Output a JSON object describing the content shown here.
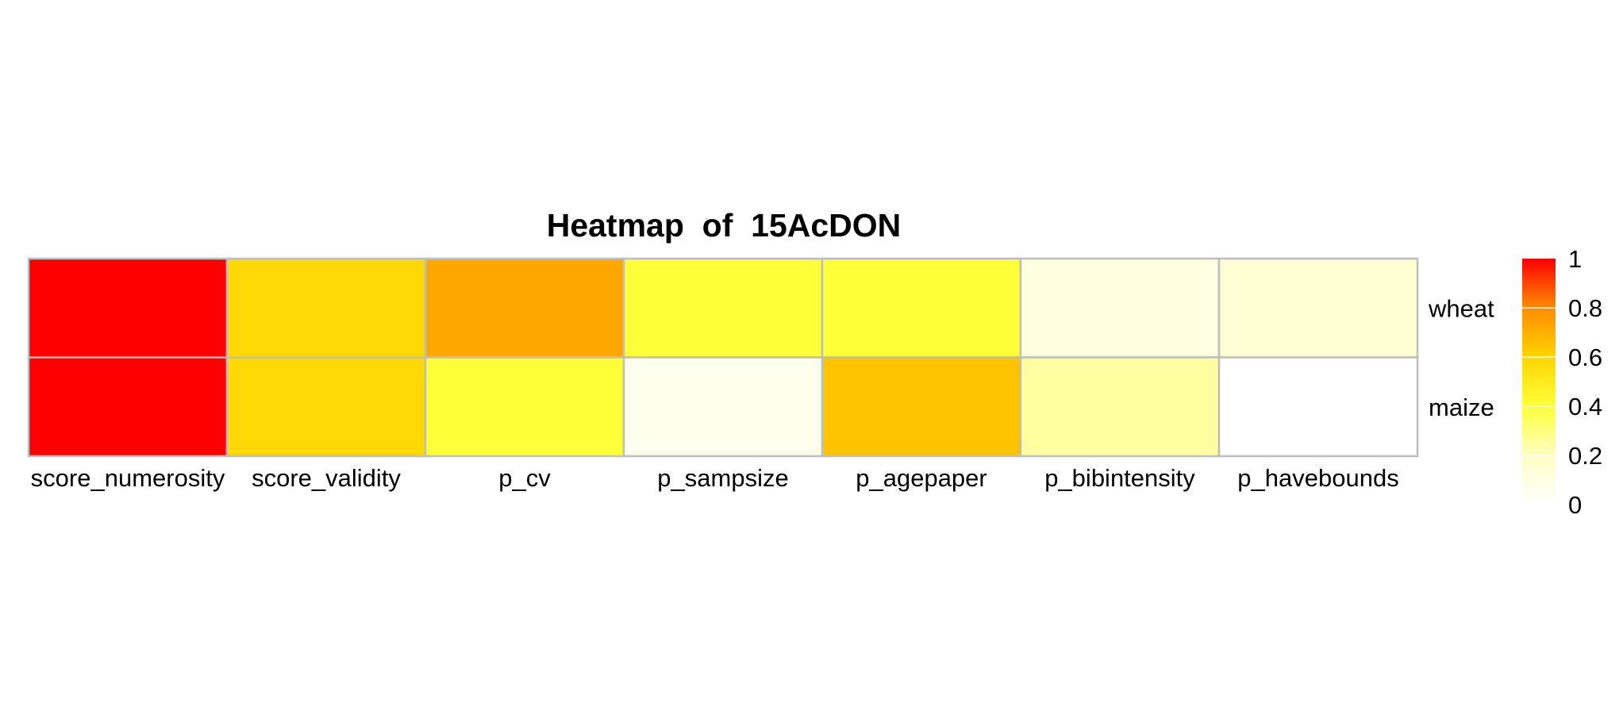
{
  "chart_data": {
    "type": "heatmap",
    "title": "Heatmap  of  15AcDON",
    "xlabel": "",
    "ylabel": "",
    "columns": [
      "score_numerosity",
      "score_validity",
      "p_cv",
      "p_sampsize",
      "p_agepaper",
      "p_bibintensity",
      "p_havebounds"
    ],
    "rows": [
      "wheat",
      "maize"
    ],
    "values": [
      [
        1.0,
        0.58,
        0.73,
        0.4,
        0.4,
        0.1,
        0.15
      ],
      [
        1.0,
        0.58,
        0.4,
        0.06,
        0.65,
        0.25,
        0.0
      ]
    ],
    "value_range": [
      0,
      1
    ],
    "legend": {
      "position": "right",
      "ticks": [
        "1",
        "0.8",
        "0.6",
        "0.4",
        "0.2",
        "0"
      ],
      "tick_values": [
        1,
        0.8,
        0.6,
        0.4,
        0.2,
        0
      ]
    },
    "colorscale": [
      {
        "value": 0.0,
        "color": "#ffffff"
      },
      {
        "value": 0.2,
        "color": "#ffffc4"
      },
      {
        "value": 0.4,
        "color": "#ffff3a"
      },
      {
        "value": 0.6,
        "color": "#ffd500"
      },
      {
        "value": 0.8,
        "color": "#ff8c00"
      },
      {
        "value": 1.0,
        "color": "#ff0000"
      }
    ],
    "grid": true,
    "gridColor": "#bebebe"
  }
}
